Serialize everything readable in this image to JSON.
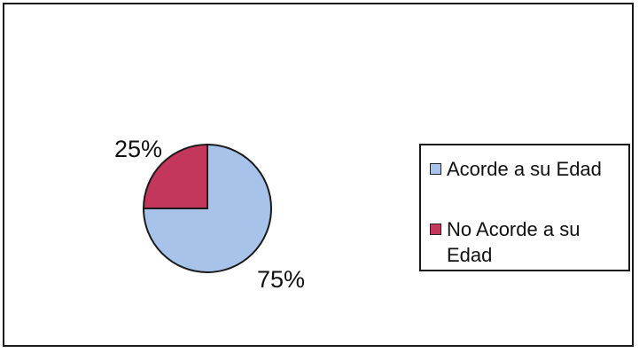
{
  "chart_data": {
    "type": "pie",
    "categories": [
      "Acorde a su Edad",
      "No Acorde a su Edad"
    ],
    "values": [
      75,
      25
    ],
    "value_labels": [
      "75%",
      "25%"
    ],
    "colors": [
      "#a7c3e9",
      "#c2375b"
    ],
    "legend_position": "right",
    "title": "",
    "xlabel": "",
    "ylabel": ""
  }
}
